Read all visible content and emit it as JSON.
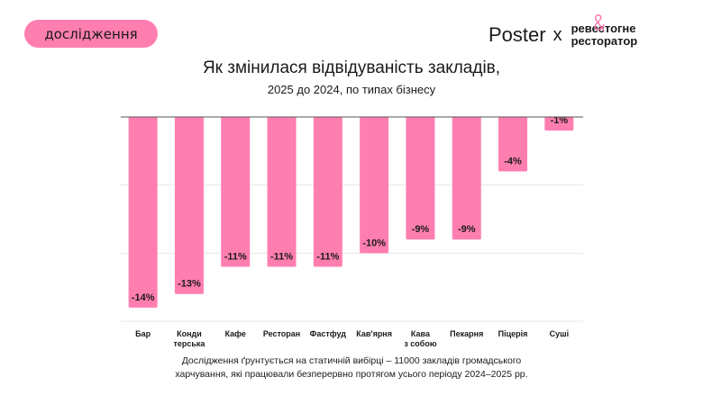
{
  "badge": "дослідження",
  "logo": {
    "poster": "Poster",
    "x": "x",
    "partner_line1": "ревестогне",
    "partner_line2": "ресторатор",
    "amp": "&"
  },
  "title": "Як змінилася відвідуваність закладів,",
  "subtitle": "2025 до 2024, по типах бізнесу",
  "note_line1": "Дослідження ґрунтується на статичній вибірці – 11000 закладів громадського",
  "note_line2": "харчування, які працювали безперервно протягом усього періоду 2024–2025 рр.",
  "chart_data": {
    "type": "bar",
    "categories": [
      [
        "Бар"
      ],
      [
        "Конди",
        "терська"
      ],
      [
        "Кафе"
      ],
      [
        "Ресторан"
      ],
      [
        "Фастфуд"
      ],
      [
        "Кав'ярня"
      ],
      [
        "Кава",
        "з собою"
      ],
      [
        "Пекарня"
      ],
      [
        "Піцерія"
      ],
      [
        "Суші"
      ]
    ],
    "values": [
      -14,
      -13,
      -11,
      -11,
      -11,
      -10,
      -9,
      -9,
      -4,
      -1
    ],
    "data_labels": [
      "-14%",
      "-13%",
      "-11%",
      "-11%",
      "-11%",
      "-10%",
      "-9%",
      "-9%",
      "-4%",
      "-1%"
    ],
    "ylim": [
      -15,
      0
    ],
    "grid": true,
    "bar_color": "#ff7eb0"
  }
}
